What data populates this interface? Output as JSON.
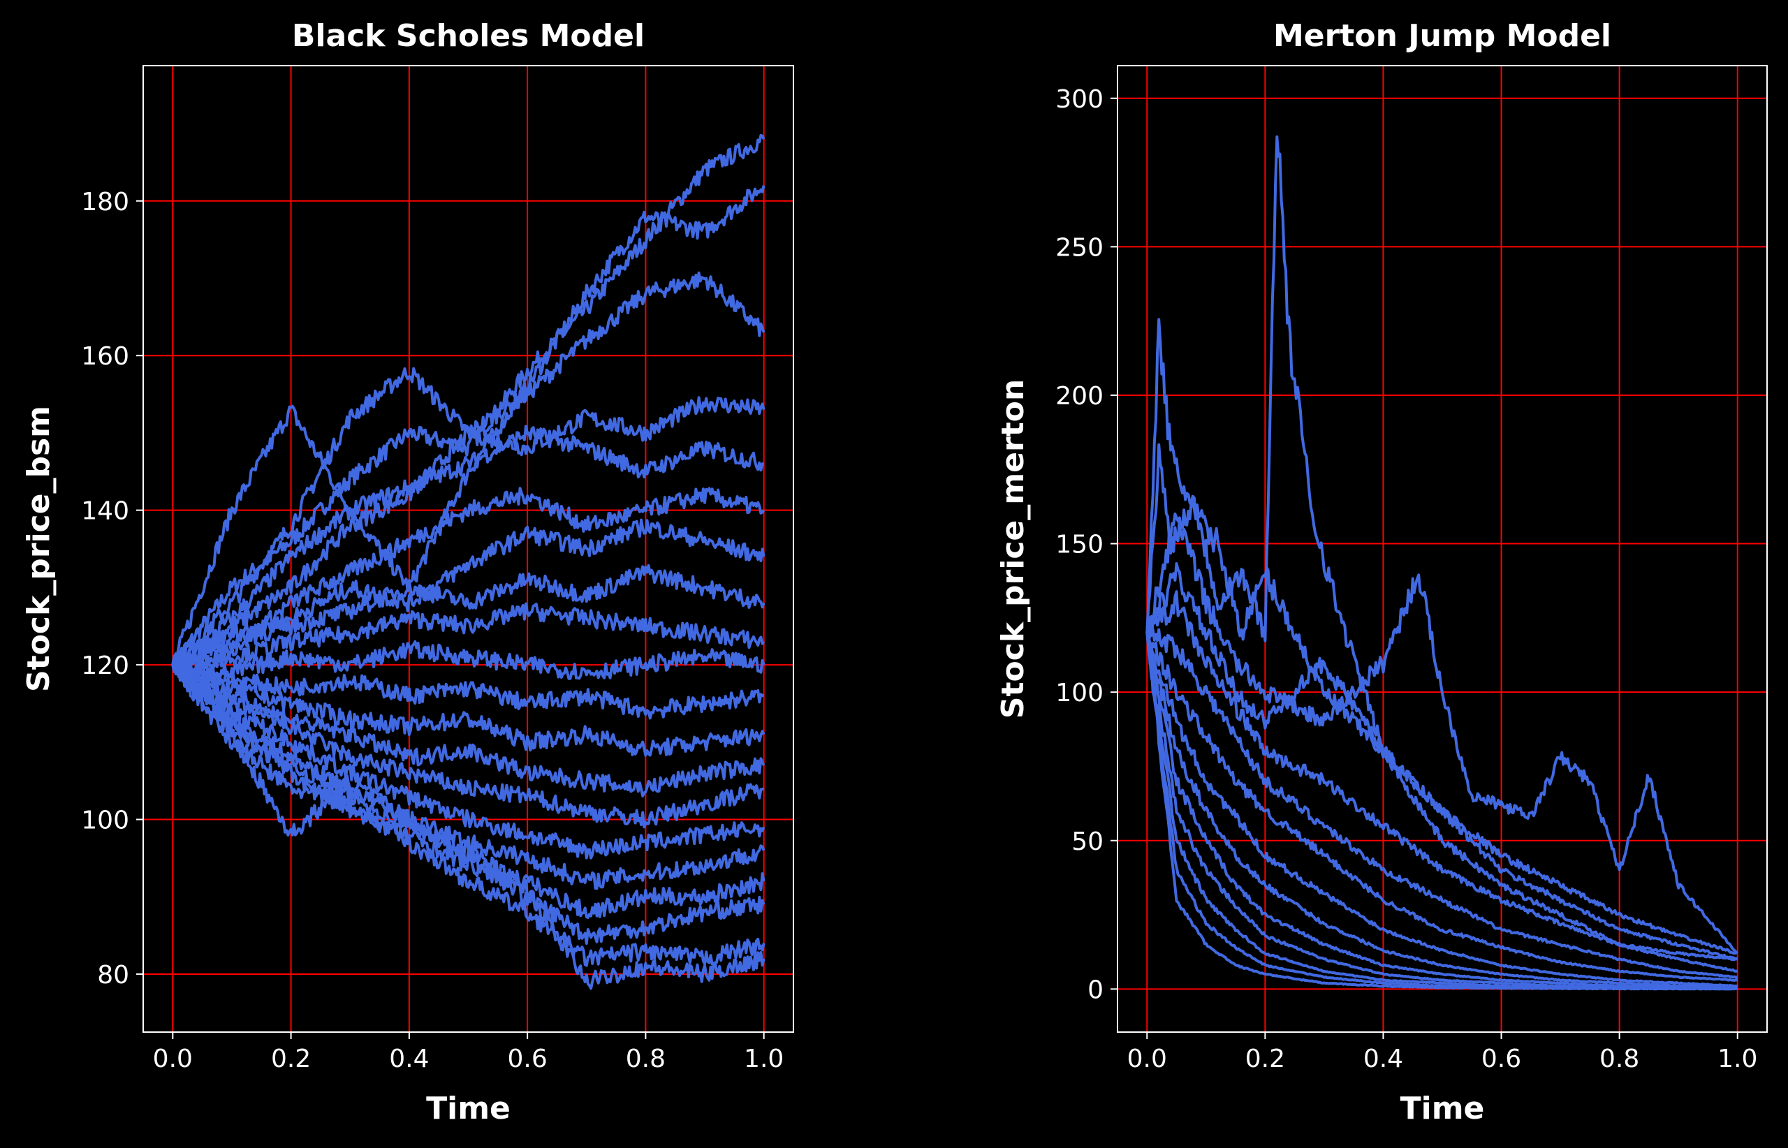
{
  "colors": {
    "background": "#000000",
    "line": "#4169e1",
    "grid": "#ff0000",
    "axes": "#ffffff",
    "text": "#ffffff"
  },
  "chart_data": [
    {
      "type": "line",
      "title": "Black Scholes Model",
      "xlabel": "Time",
      "ylabel": "Stock_price_bsm",
      "xlim": [
        -0.05,
        1.05
      ],
      "ylim": [
        72.5,
        197.5
      ],
      "xticks": [
        0.0,
        0.2,
        0.4,
        0.6,
        0.8,
        1.0
      ],
      "xtick_labels": [
        "0.0",
        "0.2",
        "0.4",
        "0.6",
        "0.8",
        "1.0"
      ],
      "yticks": [
        80,
        100,
        120,
        140,
        160,
        180
      ],
      "ytick_labels": [
        "80",
        "100",
        "120",
        "140",
        "160",
        "180"
      ],
      "grid": true,
      "legend": "none",
      "series": [
        {
          "x": [
            0,
            0.1,
            0.2,
            0.3,
            0.4,
            0.5,
            0.6,
            0.7,
            0.8,
            0.9,
            1.0
          ],
          "values": [
            120,
            130,
            136,
            144,
            150,
            148,
            158,
            166,
            175,
            184,
            188
          ]
        },
        {
          "x": [
            0,
            0.1,
            0.2,
            0.3,
            0.4,
            0.5,
            0.6,
            0.7,
            0.8,
            0.9,
            1.0
          ],
          "values": [
            120,
            140,
            153,
            140,
            130,
            145,
            156,
            168,
            178,
            176,
            182
          ]
        },
        {
          "x": [
            0,
            0.1,
            0.2,
            0.3,
            0.4,
            0.5,
            0.6,
            0.7,
            0.8,
            0.9,
            1.0
          ],
          "values": [
            120,
            128,
            138,
            152,
            158,
            150,
            155,
            162,
            168,
            170,
            163
          ]
        },
        {
          "x": [
            0,
            0.1,
            0.2,
            0.3,
            0.4,
            0.5,
            0.6,
            0.7,
            0.8,
            0.9,
            1.0
          ],
          "values": [
            120,
            125,
            130,
            138,
            142,
            150,
            148,
            152,
            150,
            154,
            153
          ]
        },
        {
          "x": [
            0,
            0.1,
            0.2,
            0.3,
            0.4,
            0.5,
            0.6,
            0.7,
            0.8,
            0.9,
            1.0
          ],
          "values": [
            120,
            126,
            134,
            140,
            143,
            146,
            150,
            148,
            145,
            148,
            146
          ]
        },
        {
          "x": [
            0,
            0.1,
            0.2,
            0.3,
            0.4,
            0.5,
            0.6,
            0.7,
            0.8,
            0.9,
            1.0
          ],
          "values": [
            120,
            122,
            128,
            132,
            136,
            140,
            142,
            138,
            140,
            142,
            140
          ]
        },
        {
          "x": [
            0,
            0.1,
            0.2,
            0.3,
            0.4,
            0.5,
            0.6,
            0.7,
            0.8,
            0.9,
            1.0
          ],
          "values": [
            120,
            124,
            126,
            130,
            128,
            133,
            137,
            135,
            138,
            136,
            134
          ]
        },
        {
          "x": [
            0,
            0.1,
            0.2,
            0.3,
            0.4,
            0.5,
            0.6,
            0.7,
            0.8,
            0.9,
            1.0
          ],
          "values": [
            120,
            123,
            125,
            127,
            130,
            128,
            131,
            129,
            132,
            130,
            128
          ]
        },
        {
          "x": [
            0,
            0.1,
            0.2,
            0.3,
            0.4,
            0.5,
            0.6,
            0.7,
            0.8,
            0.9,
            1.0
          ],
          "values": [
            120,
            121,
            123,
            124,
            126,
            125,
            127,
            126,
            125,
            124,
            123
          ]
        },
        {
          "x": [
            0,
            0.1,
            0.2,
            0.3,
            0.4,
            0.5,
            0.6,
            0.7,
            0.8,
            0.9,
            1.0
          ],
          "values": [
            120,
            119,
            121,
            120,
            122,
            121,
            120,
            119,
            120,
            121,
            120
          ]
        },
        {
          "x": [
            0,
            0.1,
            0.2,
            0.3,
            0.4,
            0.5,
            0.6,
            0.7,
            0.8,
            0.9,
            1.0
          ],
          "values": [
            120,
            118,
            117,
            118,
            116,
            117,
            115,
            116,
            114,
            115,
            116
          ]
        },
        {
          "x": [
            0,
            0.1,
            0.2,
            0.3,
            0.4,
            0.5,
            0.6,
            0.7,
            0.8,
            0.9,
            1.0
          ],
          "values": [
            120,
            117,
            115,
            113,
            112,
            113,
            110,
            111,
            109,
            110,
            111
          ]
        },
        {
          "x": [
            0,
            0.1,
            0.2,
            0.3,
            0.4,
            0.5,
            0.6,
            0.7,
            0.8,
            0.9,
            1.0
          ],
          "values": [
            120,
            116,
            113,
            111,
            108,
            109,
            106,
            105,
            104,
            106,
            107
          ]
        },
        {
          "x": [
            0,
            0.1,
            0.2,
            0.3,
            0.4,
            0.5,
            0.6,
            0.7,
            0.8,
            0.9,
            1.0
          ],
          "values": [
            120,
            115,
            112,
            108,
            106,
            104,
            103,
            101,
            100,
            102,
            104
          ]
        },
        {
          "x": [
            0,
            0.1,
            0.2,
            0.3,
            0.4,
            0.5,
            0.6,
            0.7,
            0.8,
            0.9,
            1.0
          ],
          "values": [
            120,
            114,
            110,
            106,
            103,
            100,
            98,
            96,
            97,
            98,
            99
          ]
        },
        {
          "x": [
            0,
            0.1,
            0.2,
            0.3,
            0.4,
            0.5,
            0.6,
            0.7,
            0.8,
            0.9,
            1.0
          ],
          "values": [
            120,
            113,
            108,
            104,
            100,
            97,
            95,
            92,
            93,
            94,
            96
          ]
        },
        {
          "x": [
            0,
            0.1,
            0.2,
            0.3,
            0.4,
            0.5,
            0.6,
            0.7,
            0.8,
            0.9,
            1.0
          ],
          "values": [
            120,
            112,
            106,
            101,
            98,
            94,
            92,
            88,
            90,
            90,
            92
          ]
        },
        {
          "x": [
            0,
            0.1,
            0.2,
            0.3,
            0.4,
            0.5,
            0.6,
            0.7,
            0.8,
            0.9,
            1.0
          ],
          "values": [
            120,
            111,
            98,
            105,
            100,
            95,
            90,
            85,
            86,
            88,
            89
          ]
        },
        {
          "x": [
            0,
            0.1,
            0.2,
            0.3,
            0.4,
            0.5,
            0.6,
            0.7,
            0.8,
            0.9,
            1.0
          ],
          "values": [
            120,
            110,
            104,
            102,
            97,
            92,
            88,
            82,
            83,
            82,
            84
          ]
        },
        {
          "x": [
            0,
            0.1,
            0.2,
            0.3,
            0.4,
            0.5,
            0.6,
            0.7,
            0.8,
            0.9,
            1.0
          ],
          "values": [
            120,
            112,
            107,
            103,
            99,
            96,
            91,
            79,
            81,
            80,
            82
          ]
        }
      ]
    },
    {
      "type": "line",
      "title": "Merton Jump Model",
      "xlabel": "Time",
      "ylabel": "Stock_price_merton",
      "xlim": [
        -0.05,
        1.05
      ],
      "ylim": [
        -14.5,
        311
      ],
      "xticks": [
        0.0,
        0.2,
        0.4,
        0.6,
        0.8,
        1.0
      ],
      "xtick_labels": [
        "0.0",
        "0.2",
        "0.4",
        "0.6",
        "0.8",
        "1.0"
      ],
      "yticks": [
        0,
        50,
        100,
        150,
        200,
        250,
        300
      ],
      "ytick_labels": [
        "0",
        "50",
        "100",
        "150",
        "200",
        "250",
        "300"
      ],
      "grid": true,
      "legend": "none",
      "series": [
        {
          "x": [
            0,
            0.02,
            0.04,
            0.08,
            0.12,
            0.16,
            0.2,
            0.22,
            0.24,
            0.28,
            0.32,
            0.4,
            0.5,
            0.6,
            0.7,
            0.8,
            0.9,
            1.0
          ],
          "values": [
            120,
            180,
            150,
            165,
            130,
            140,
            120,
            295,
            220,
            160,
            130,
            80,
            50,
            35,
            25,
            15,
            12,
            10
          ]
        },
        {
          "x": [
            0,
            0.02,
            0.04,
            0.08,
            0.12,
            0.16,
            0.2,
            0.25,
            0.3,
            0.4,
            0.5,
            0.6,
            0.7,
            0.8,
            0.9,
            1.0
          ],
          "values": [
            120,
            222,
            180,
            160,
            150,
            120,
            140,
            120,
            100,
            80,
            60,
            45,
            35,
            25,
            18,
            12
          ]
        },
        {
          "x": [
            0,
            0.05,
            0.1,
            0.15,
            0.2,
            0.3,
            0.4,
            0.46,
            0.5,
            0.55,
            0.6,
            0.65,
            0.7,
            0.75,
            0.8,
            0.85,
            0.9,
            1.0
          ],
          "values": [
            120,
            160,
            130,
            110,
            100,
            90,
            110,
            140,
            100,
            65,
            62,
            58,
            78,
            70,
            40,
            72,
            35,
            12
          ]
        },
        {
          "x": [
            0,
            0.05,
            0.1,
            0.15,
            0.2,
            0.3,
            0.4,
            0.5,
            0.6,
            0.7,
            0.8,
            0.9,
            1.0
          ],
          "values": [
            120,
            140,
            120,
            100,
            90,
            110,
            80,
            60,
            40,
            30,
            20,
            15,
            10
          ]
        },
        {
          "x": [
            0,
            0.05,
            0.1,
            0.15,
            0.2,
            0.3,
            0.4,
            0.5,
            0.6,
            0.7,
            0.8,
            0.9,
            1.0
          ],
          "values": [
            120,
            130,
            110,
            95,
            80,
            70,
            55,
            40,
            30,
            22,
            15,
            10,
            6
          ]
        },
        {
          "x": [
            0,
            0.05,
            0.1,
            0.15,
            0.2,
            0.3,
            0.4,
            0.5,
            0.6,
            0.7,
            0.8,
            0.9,
            1.0
          ],
          "values": [
            120,
            115,
            100,
            85,
            70,
            55,
            40,
            30,
            20,
            15,
            10,
            6,
            4
          ]
        },
        {
          "x": [
            0,
            0.05,
            0.1,
            0.15,
            0.2,
            0.3,
            0.4,
            0.5,
            0.6,
            0.7,
            0.8,
            0.9,
            1.0
          ],
          "values": [
            120,
            100,
            85,
            70,
            60,
            45,
            30,
            20,
            14,
            9,
            6,
            4,
            3
          ]
        },
        {
          "x": [
            0,
            0.05,
            0.1,
            0.15,
            0.2,
            0.3,
            0.4,
            0.5,
            0.6,
            0.7,
            0.8,
            0.9,
            1.0
          ],
          "values": [
            120,
            90,
            70,
            58,
            45,
            32,
            20,
            13,
            8,
            5,
            3,
            2,
            1
          ]
        },
        {
          "x": [
            0,
            0.05,
            0.1,
            0.15,
            0.2,
            0.3,
            0.4,
            0.5,
            0.6,
            0.7,
            0.8,
            0.9,
            1.0
          ],
          "values": [
            120,
            80,
            60,
            45,
            35,
            22,
            13,
            8,
            5,
            3,
            2,
            1,
            1
          ]
        },
        {
          "x": [
            0,
            0.05,
            0.1,
            0.15,
            0.2,
            0.3,
            0.4,
            0.5,
            0.6,
            0.7,
            0.8,
            0.9,
            1.0
          ],
          "values": [
            120,
            70,
            50,
            35,
            25,
            15,
            8,
            5,
            3,
            2,
            1,
            0.5,
            0.3
          ]
        },
        {
          "x": [
            0,
            0.05,
            0.1,
            0.15,
            0.2,
            0.3,
            0.4,
            0.5,
            0.6,
            0.7,
            0.8,
            0.9,
            1.0
          ],
          "values": [
            120,
            60,
            40,
            28,
            18,
            10,
            5,
            3,
            2,
            1,
            0.5,
            0.3,
            0.2
          ]
        },
        {
          "x": [
            0,
            0.05,
            0.1,
            0.15,
            0.2,
            0.3,
            0.4,
            0.5,
            0.6,
            0.7,
            0.8,
            0.9,
            1.0
          ],
          "values": [
            120,
            50,
            30,
            20,
            12,
            6,
            3,
            2,
            1,
            0.5,
            0.3,
            0.2,
            0.1
          ]
        },
        {
          "x": [
            0,
            0.05,
            0.1,
            0.15,
            0.2,
            0.3,
            0.4,
            0.5,
            0.6,
            0.7,
            0.8,
            0.9,
            1.0
          ],
          "values": [
            120,
            40,
            22,
            14,
            8,
            4,
            2,
            1,
            0.5,
            0.3,
            0.2,
            0.1,
            0.1
          ]
        },
        {
          "x": [
            0,
            0.05,
            0.1,
            0.15,
            0.2,
            0.3,
            0.4,
            0.5,
            0.6,
            0.7,
            0.8,
            0.9,
            1.0
          ],
          "values": [
            120,
            30,
            15,
            8,
            5,
            2,
            1,
            0.5,
            0.3,
            0.2,
            0.1,
            0.1,
            0
          ]
        }
      ]
    }
  ]
}
